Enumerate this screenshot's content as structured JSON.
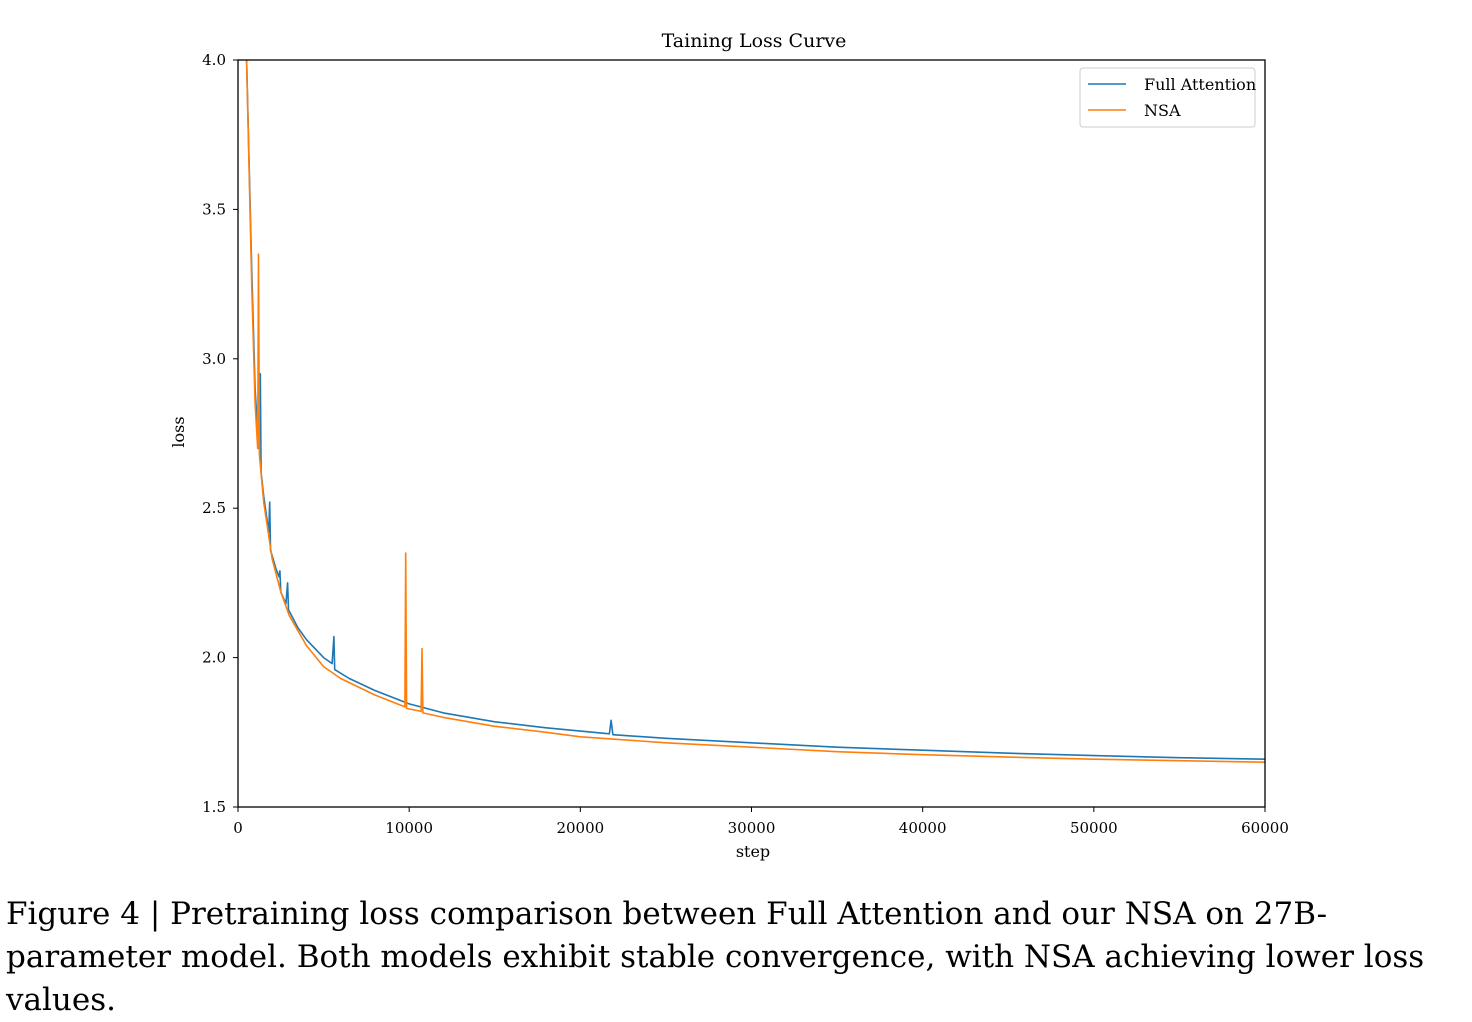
{
  "chart_data": {
    "type": "line",
    "title": "Taining Loss Curve",
    "xlabel": "step",
    "ylabel": "loss",
    "xlim": [
      0,
      60000
    ],
    "ylim": [
      1.5,
      4.0
    ],
    "xticks": [
      "0",
      "10000",
      "20000",
      "30000",
      "40000",
      "50000",
      "60000"
    ],
    "yticks": [
      "1.5",
      "2.0",
      "2.5",
      "3.0",
      "3.5",
      "4.0"
    ],
    "grid": false,
    "legend": "top-right",
    "series": [
      {
        "name": "Full Attention",
        "color": "#1f77b4",
        "points": [
          [
            500,
            4.0
          ],
          [
            800,
            3.3
          ],
          [
            1000,
            2.9
          ],
          [
            1200,
            2.7
          ],
          [
            1300,
            2.95
          ],
          [
            1350,
            2.62
          ],
          [
            1500,
            2.54
          ],
          [
            1800,
            2.42
          ],
          [
            1850,
            2.52
          ],
          [
            1900,
            2.36
          ],
          [
            2200,
            2.3
          ],
          [
            2400,
            2.27
          ],
          [
            2450,
            2.29
          ],
          [
            2500,
            2.22
          ],
          [
            2800,
            2.18
          ],
          [
            2900,
            2.25
          ],
          [
            2950,
            2.16
          ],
          [
            3500,
            2.1
          ],
          [
            4000,
            2.06
          ],
          [
            5000,
            2.0
          ],
          [
            5500,
            1.98
          ],
          [
            5600,
            2.07
          ],
          [
            5650,
            1.96
          ],
          [
            6500,
            1.93
          ],
          [
            8000,
            1.89
          ],
          [
            10000,
            1.845
          ],
          [
            12000,
            1.815
          ],
          [
            15000,
            1.785
          ],
          [
            18000,
            1.765
          ],
          [
            21700,
            1.745
          ],
          [
            21800,
            1.79
          ],
          [
            21900,
            1.742
          ],
          [
            25000,
            1.73
          ],
          [
            30000,
            1.715
          ],
          [
            35000,
            1.7
          ],
          [
            40000,
            1.69
          ],
          [
            45000,
            1.68
          ],
          [
            50000,
            1.672
          ],
          [
            55000,
            1.665
          ],
          [
            60000,
            1.66
          ]
        ]
      },
      {
        "name": "NSA",
        "color": "#ff7f0e",
        "points": [
          [
            500,
            4.0
          ],
          [
            800,
            3.25
          ],
          [
            1000,
            2.85
          ],
          [
            1150,
            2.7
          ],
          [
            1200,
            3.35
          ],
          [
            1250,
            2.68
          ],
          [
            1500,
            2.52
          ],
          [
            2000,
            2.33
          ],
          [
            2500,
            2.22
          ],
          [
            3000,
            2.14
          ],
          [
            3500,
            2.09
          ],
          [
            4000,
            2.04
          ],
          [
            5000,
            1.97
          ],
          [
            6000,
            1.93
          ],
          [
            8000,
            1.875
          ],
          [
            9750,
            1.835
          ],
          [
            9800,
            2.35
          ],
          [
            9850,
            1.83
          ],
          [
            10700,
            1.82
          ],
          [
            10750,
            2.03
          ],
          [
            10800,
            1.815
          ],
          [
            12000,
            1.8
          ],
          [
            15000,
            1.77
          ],
          [
            18000,
            1.75
          ],
          [
            20000,
            1.735
          ],
          [
            25000,
            1.715
          ],
          [
            30000,
            1.7
          ],
          [
            35000,
            1.685
          ],
          [
            40000,
            1.675
          ],
          [
            45000,
            1.667
          ],
          [
            50000,
            1.66
          ],
          [
            55000,
            1.655
          ],
          [
            60000,
            1.65
          ]
        ]
      }
    ]
  },
  "caption": "Figure 4 | Pretraining loss comparison between Full Attention and our NSA on 27B-parameter model. Both models exhibit stable convergence, with NSA achieving lower loss values."
}
